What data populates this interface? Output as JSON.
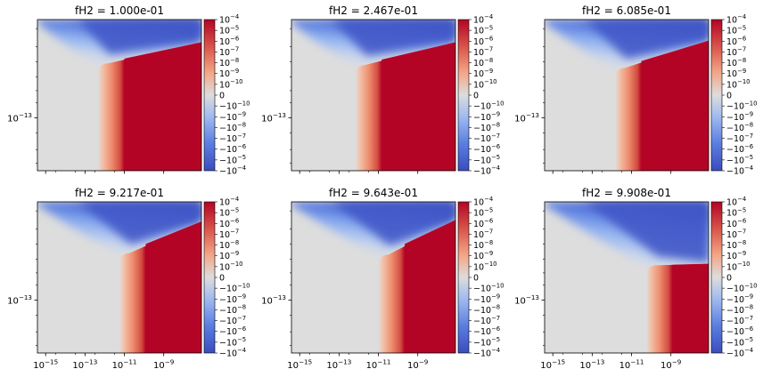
{
  "chart_data": {
    "type": "heatmap",
    "colormap": "coolwarm",
    "scale": "symlog",
    "xscale": "log",
    "yscale": "log",
    "x_tick_labels": [
      "10^-15",
      "10^-13",
      "10^-11",
      "10^-9"
    ],
    "y_tick_labels": [
      "10^-13"
    ],
    "colorbar_ticks": [
      "10^-4",
      "10^-5",
      "10^-6",
      "10^-7",
      "10^-8",
      "10^-9",
      "10^-10",
      "0",
      "-10^-10",
      "-10^-9",
      "-10^-8",
      "-10^-7",
      "-10^-6",
      "-10^-5",
      "-10^-4"
    ],
    "colors": {
      "negative_high": "#3b4cc0",
      "neutral": "#dddddd",
      "positive_high": "#b40426"
    },
    "panels": [
      {
        "title": "fH2 = 1.000e-01",
        "boundary_x": [
          0.39,
          0.53
        ],
        "upper_y": [
          0.71,
          0.85
        ]
      },
      {
        "title": "fH2 = 2.467e-01",
        "boundary_x": [
          0.41,
          0.55
        ],
        "upper_y": [
          0.7,
          0.85
        ]
      },
      {
        "title": "fH2 = 6.085e-01",
        "boundary_x": [
          0.45,
          0.59
        ],
        "upper_y": [
          0.68,
          0.86
        ]
      },
      {
        "title": "fH2 = 9.217e-01",
        "boundary_x": [
          0.52,
          0.66
        ],
        "upper_y": [
          0.66,
          0.87
        ]
      },
      {
        "title": "fH2 = 9.643e-01",
        "boundary_x": [
          0.55,
          0.69
        ],
        "upper_y": [
          0.65,
          0.88
        ]
      },
      {
        "title": "fH2 = 9.908e-01",
        "boundary_x": [
          0.64,
          0.78
        ],
        "upper_y": [
          0.58,
          0.59
        ]
      }
    ]
  }
}
